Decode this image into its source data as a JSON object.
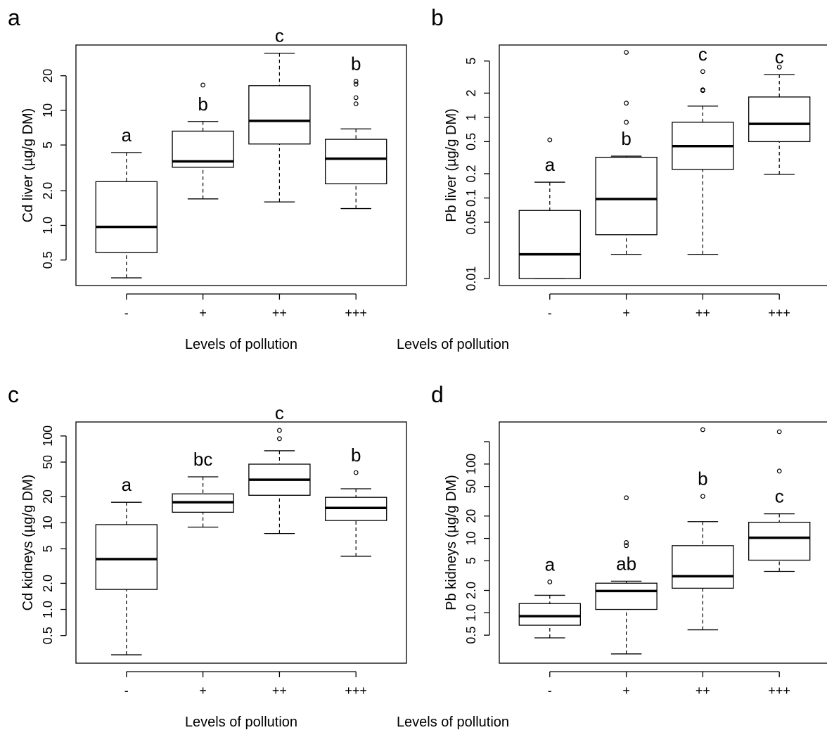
{
  "chart_data": [
    {
      "type": "box",
      "panel": "a",
      "ylabel": "Cd liver (µg/g DM)",
      "xlabel": "Levels of pollution",
      "categories": [
        "-",
        "+",
        "++",
        "+++"
      ],
      "log_y": true,
      "ylim": [
        0.3,
        37
      ],
      "yticks": [
        0.5,
        {
          "value": 1,
          "label": "1.0"
        },
        {
          "value": 2,
          "label": "2.0"
        },
        5,
        10,
        20
      ],
      "boxes": [
        {
          "low": 0.35,
          "q1": 0.58,
          "median": 0.97,
          "q3": 2.4,
          "high": 4.3,
          "outliers": []
        },
        {
          "low": 1.7,
          "q1": 3.2,
          "median": 3.6,
          "q3": 6.6,
          "high": 8.0,
          "outliers": [
            16.6
          ]
        },
        {
          "low": 1.6,
          "q1": 5.1,
          "median": 8.1,
          "q3": 16.4,
          "high": 31.4,
          "outliers": []
        },
        {
          "low": 1.4,
          "q1": 2.3,
          "median": 3.8,
          "q3": 5.6,
          "high": 6.9,
          "outliers": [
            17.9,
            16.9,
            12.9,
            11.4
          ]
        }
      ],
      "letters": [
        "a",
        "b",
        "c",
        "b"
      ]
    },
    {
      "type": "box",
      "panel": "b",
      "ylabel": "Pb liver (µg/g DM)",
      "xlabel": "Levels of pollution",
      "categories": [
        "-",
        "+",
        "++",
        "+++"
      ],
      "log_y": true,
      "ylim": [
        0.0082,
        7.9
      ],
      "yticks": [
        0.01,
        0.05,
        0.1,
        0.2,
        0.5,
        1,
        2,
        5
      ],
      "boxes": [
        {
          "low": 0.01,
          "q1": 0.01,
          "median": 0.02,
          "q3": 0.07,
          "high": 0.157,
          "outliers": [
            0.525
          ]
        },
        {
          "low": 0.02,
          "q1": 0.035,
          "median": 0.097,
          "q3": 0.32,
          "high": 0.33,
          "outliers": [
            6.4,
            1.5,
            0.87
          ]
        },
        {
          "low": 0.02,
          "q1": 0.226,
          "median": 0.44,
          "q3": 0.87,
          "high": 1.38,
          "outliers": [
            3.7,
            2.2,
            2.15
          ]
        },
        {
          "low": 0.196,
          "q1": 0.5,
          "median": 0.83,
          "q3": 1.79,
          "high": 3.4,
          "outliers": [
            4.2
          ]
        }
      ],
      "letters": [
        "a",
        "b",
        "c",
        "c"
      ]
    },
    {
      "type": "box",
      "panel": "c",
      "ylabel": "Cd kidneys (µg/g DM)",
      "xlabel": "Levels of pollution",
      "categories": [
        "-",
        "+",
        "++",
        "+++"
      ],
      "log_y": true,
      "ylim": [
        0.24,
        145
      ],
      "yticks": [
        0.5,
        {
          "value": 1,
          "label": "1.0"
        },
        {
          "value": 2,
          "label": "2.0"
        },
        5,
        10,
        20,
        50,
        100
      ],
      "boxes": [
        {
          "low": 0.3,
          "q1": 1.7,
          "median": 3.8,
          "q3": 9.5,
          "high": 17.2,
          "outliers": []
        },
        {
          "low": 8.9,
          "q1": 13.2,
          "median": 17.2,
          "q3": 21.5,
          "high": 33.8,
          "outliers": []
        },
        {
          "low": 7.5,
          "q1": 20.7,
          "median": 31.3,
          "q3": 47.3,
          "high": 67.5,
          "outliers": [
            116,
            93
          ]
        },
        {
          "low": 4.1,
          "q1": 10.6,
          "median": 14.8,
          "q3": 19.6,
          "high": 24.6,
          "outliers": [
            37.8
          ]
        }
      ],
      "letters": [
        "a",
        "bc",
        "c",
        "b"
      ]
    },
    {
      "type": "box",
      "panel": "d",
      "ylabel": "Pb kidneys (µg/g DM)",
      "xlabel": "Levels of pollution",
      "categories": [
        "-",
        "+",
        "++",
        "+++"
      ],
      "log_y": true,
      "ylim": [
        0.21,
        368
      ],
      "yticks": [
        0.5,
        {
          "value": 1,
          "label": "1.0"
        },
        {
          "value": 2,
          "label": "2.0"
        },
        5,
        10,
        20,
        50,
        100,
        {
          "value": 200,
          "label": null
        }
      ],
      "boxes": [
        {
          "low": 0.46,
          "q1": 0.68,
          "median": 0.9,
          "q3": 1.33,
          "high": 1.72,
          "outliers": [
            2.6
          ]
        },
        {
          "low": 0.28,
          "q1": 1.11,
          "median": 1.96,
          "q3": 2.5,
          "high": 2.66,
          "outliers": [
            35.2,
            8.8,
            8.0
          ]
        },
        {
          "low": 0.59,
          "q1": 2.14,
          "median": 3.1,
          "q3": 8.0,
          "high": 16.8,
          "outliers": [
            290,
            36.8
          ]
        },
        {
          "low": 3.6,
          "q1": 5.1,
          "median": 10.2,
          "q3": 16.5,
          "high": 21.4,
          "outliers": [
            272,
            80.5
          ]
        }
      ],
      "letters": [
        "a",
        "ab",
        "b",
        "c"
      ]
    }
  ]
}
